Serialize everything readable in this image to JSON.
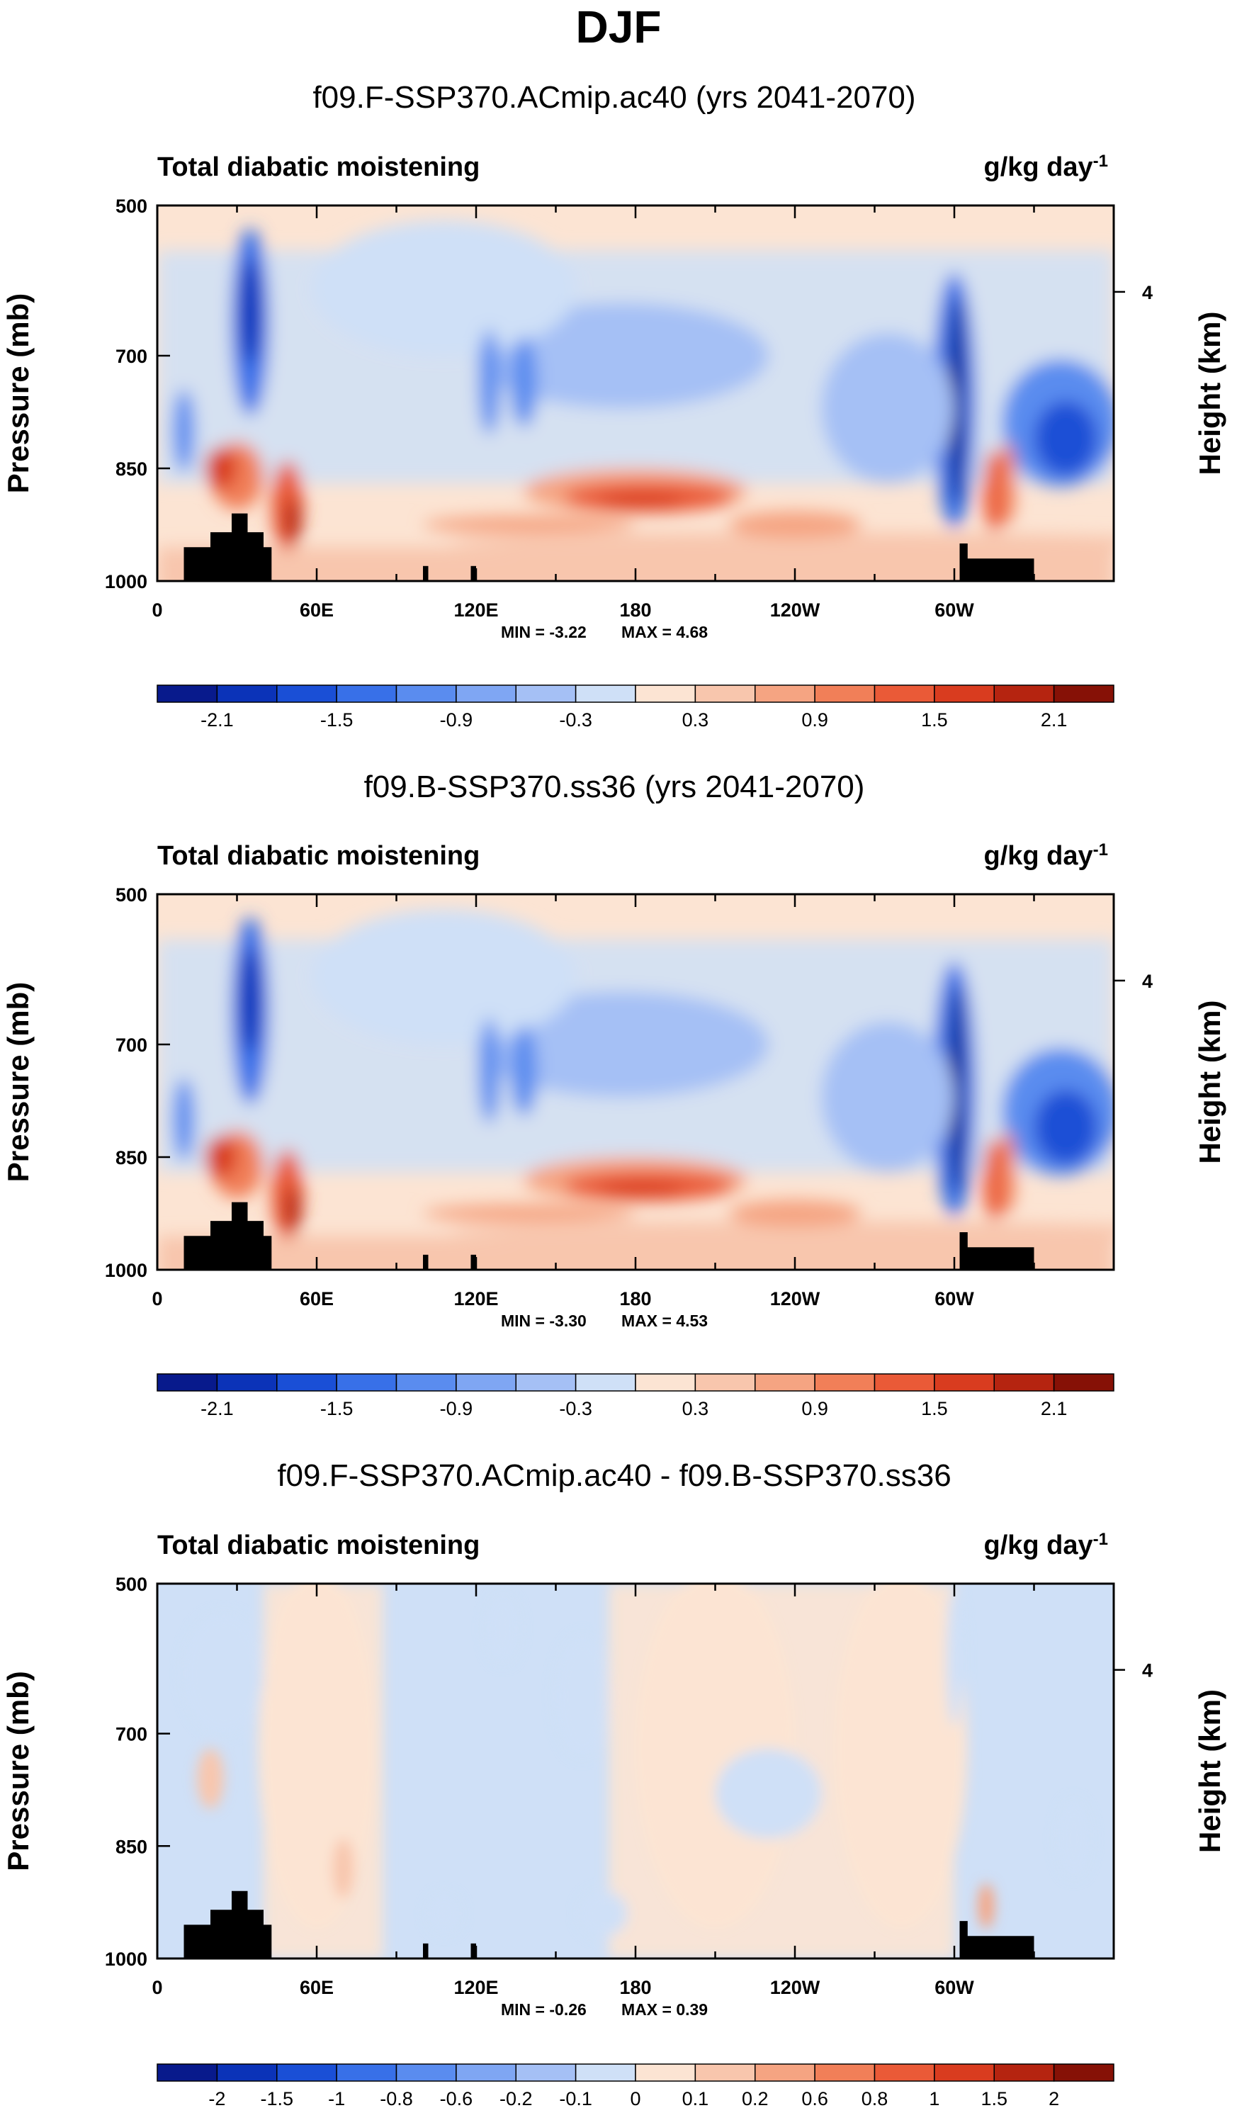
{
  "chart_data": {
    "type": "heatmap",
    "title": "DJF",
    "x_ticks": [
      "0",
      "60E",
      "120E",
      "180",
      "120W",
      "60W"
    ],
    "x_range_deg": [
      0,
      360
    ],
    "y_ticks": [
      "500",
      "700",
      "850",
      "1000"
    ],
    "ylim": [
      1000,
      500
    ],
    "ylabel": "Pressure (mb)",
    "ylabel_right": "Height (km)",
    "height_ticks": [
      "4"
    ],
    "variable": "Total diabatic moistening",
    "units_base": "g/kg day",
    "units_exponent": "-1",
    "panels": [
      {
        "subtitle": "f09.F-SSP370.ACmip.ac40 (yrs 2041-2070)",
        "min_text": "MIN = -3.22",
        "max_text": "MAX =  4.68",
        "levels": [
          -2.4,
          -2.1,
          -1.8,
          -1.5,
          -1.2,
          -0.9,
          -0.6,
          -0.3,
          0,
          0.3,
          0.6,
          0.9,
          1.2,
          1.5,
          1.8,
          2.1,
          2.4
        ],
        "colorbar_labels": [
          "-2.1",
          "-1.5",
          "-0.9",
          "-0.3",
          "0.3",
          "0.9",
          "1.5",
          "2.1"
        ]
      },
      {
        "subtitle": "f09.B-SSP370.ss36 (yrs 2041-2070)",
        "min_text": "MIN = -3.30",
        "max_text": "MAX =  4.53",
        "levels": [
          -2.4,
          -2.1,
          -1.8,
          -1.5,
          -1.2,
          -0.9,
          -0.6,
          -0.3,
          0,
          0.3,
          0.6,
          0.9,
          1.2,
          1.5,
          1.8,
          2.1,
          2.4
        ],
        "colorbar_labels": [
          "-2.1",
          "-1.5",
          "-0.9",
          "-0.3",
          "0.3",
          "0.9",
          "1.5",
          "2.1"
        ]
      },
      {
        "subtitle": "f09.F-SSP370.ACmip.ac40 - f09.B-SSP370.ss36",
        "min_text": "MIN = -0.26",
        "max_text": "MAX =  0.39",
        "levels": [
          -3,
          -2,
          -1.5,
          -1,
          -0.8,
          -0.6,
          -0.2,
          -0.1,
          0,
          0.1,
          0.2,
          0.6,
          0.8,
          1,
          1.5,
          2,
          3
        ],
        "colorbar_labels": [
          "-2",
          "-1.5",
          "-1",
          "-0.8",
          "-0.6",
          "-0.2",
          "-0.1",
          "0",
          "0.1",
          "0.2",
          "0.6",
          "0.8",
          "1",
          "1.5",
          "2"
        ]
      }
    ],
    "colors": [
      "#081a8c",
      "#0b33b8",
      "#1a4fd6",
      "#3870e8",
      "#5a8cef",
      "#7fa6f3",
      "#a5c0f5",
      "#cfe0f7",
      "#fce4d3",
      "#f8c6ad",
      "#f5a482",
      "#f17f58",
      "#ea5a37",
      "#d93c1f",
      "#b52410",
      "#861106"
    ]
  }
}
